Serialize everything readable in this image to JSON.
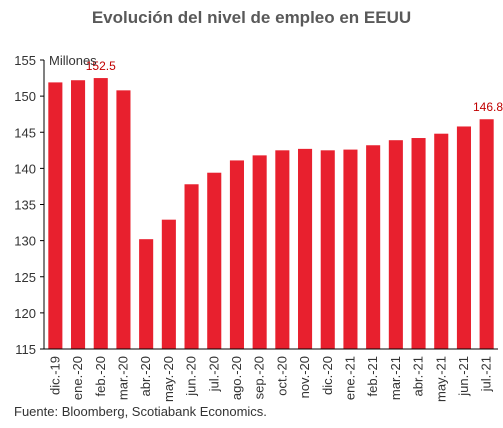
{
  "chart_data": {
    "type": "bar",
    "title": "Evolución del nivel de empleo en EEUU",
    "ylabel": "Millones",
    "source": "Fuente: Bloomberg, Scotiabank Economics.",
    "ylim": [
      115,
      155
    ],
    "yticks": [
      "115",
      "120",
      "125",
      "130",
      "135",
      "140",
      "145",
      "150",
      "155"
    ],
    "grid": false,
    "bar_color": "#E8202E",
    "label_color": "#C00000",
    "categories": [
      "dic.-19",
      "ene.-20",
      "feb.-20",
      "mar.-20",
      "abr.-20",
      "may.-20",
      "jun.-20",
      "jul.-20",
      "ago.-20",
      "sep.-20",
      "oct.-20",
      "nov.-20",
      "dic.-20",
      "ene.-21",
      "feb.-21",
      "mar.-21",
      "abr.-21",
      "may.-21",
      "jun.-21",
      "jul.-21"
    ],
    "values": [
      151.9,
      152.2,
      152.5,
      150.8,
      130.2,
      132.9,
      137.8,
      139.4,
      141.1,
      141.8,
      142.5,
      142.7,
      142.5,
      142.6,
      143.2,
      143.9,
      144.2,
      144.8,
      145.8,
      146.8
    ],
    "data_labels": [
      {
        "index": 2,
        "text": "152.5"
      },
      {
        "index": 19,
        "text": "146.8"
      }
    ]
  }
}
